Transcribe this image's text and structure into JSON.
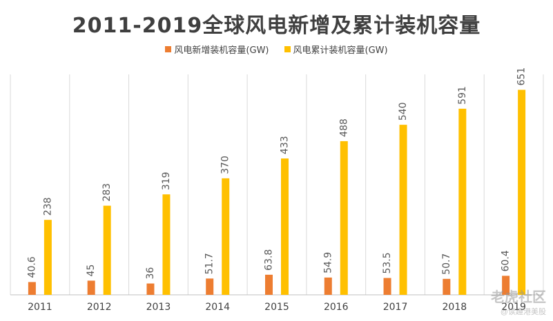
{
  "chart_data": {
    "type": "bar",
    "title": "2011-2019全球风电新增及累计装机容量",
    "xlabel": "",
    "ylabel": "",
    "ylim": [
      0,
      700
    ],
    "grid": "vertical category separators",
    "legend_position": "top",
    "categories": [
      "2011",
      "2012",
      "2013",
      "2014",
      "2015",
      "2016",
      "2017",
      "2018",
      "2019"
    ],
    "series": [
      {
        "name": "风电新增装机容量(GW)",
        "color": "#ED7D31",
        "values": [
          40.6,
          45,
          36,
          51.7,
          63.8,
          54.9,
          53.5,
          50.7,
          60.4
        ],
        "labels": [
          "40.6",
          "45",
          "36",
          "51.7",
          "63.8",
          "54.9",
          "53.5",
          "50.7",
          "60.4"
        ]
      },
      {
        "name": "风电累计装机容量(GW)",
        "color": "#FFC000",
        "values": [
          238,
          283,
          319,
          370,
          433,
          488,
          540,
          591,
          651
        ],
        "labels": [
          "238",
          "283",
          "319",
          "370",
          "433",
          "488",
          "540",
          "591",
          "651"
        ]
      }
    ]
  },
  "watermark": {
    "brand": "老虎社区",
    "handle": "@读趣港美股"
  }
}
